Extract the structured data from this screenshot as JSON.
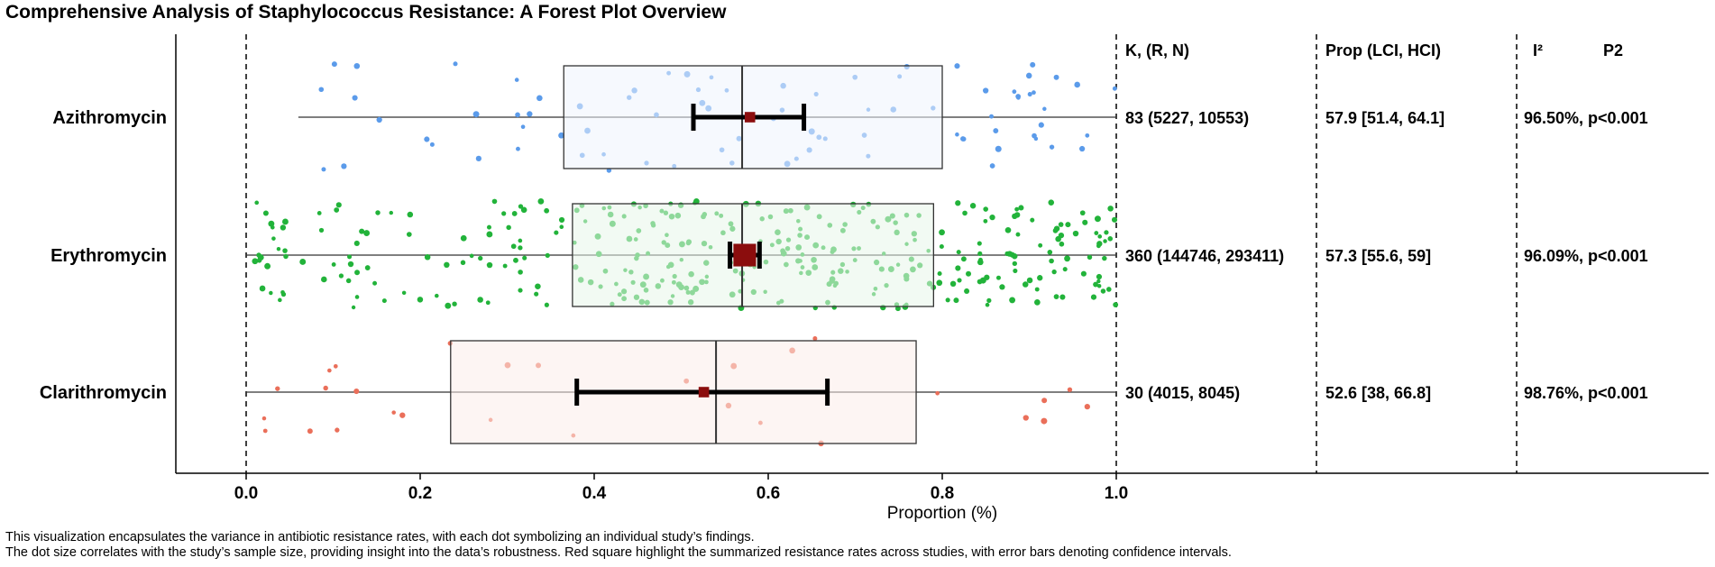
{
  "chart_data": {
    "type": "box",
    "title": "Comprehensive Analysis of Staphylococcus Resistance: A Forest Plot Overview",
    "xlabel": "Proportion (%)",
    "xlim": [
      -0.08,
      1.71
    ],
    "xticks": [
      0.0,
      0.2,
      0.4,
      0.6,
      0.8,
      1.0
    ],
    "xtick_labels": [
      "0.0",
      "0.2",
      "0.4",
      "0.6",
      "0.8",
      "1.0"
    ],
    "reference_lines": [
      0.0,
      1.0
    ],
    "table_headers": {
      "k": "K, (R, N)",
      "prop": "Prop (LCI, HCI)",
      "i2": "I²",
      "p2": "P2"
    },
    "series": [
      {
        "name": "Azithromycin",
        "color": "#5b9bea",
        "box_fill": "#eef4fd",
        "n_points": 83,
        "whisker_low": 0.06,
        "q1": 0.365,
        "median": 0.57,
        "q3": 0.8,
        "whisker_high": 1.0,
        "pooled": 0.579,
        "lci": 0.514,
        "hci": 0.641,
        "square": 0.012,
        "cap_half": 0.1,
        "k_text": "83 (5227, 10553)",
        "prop_text": "57.9 [51.4, 64.1]",
        "i2_text": "96.50%, p<0.001"
      },
      {
        "name": "Erythromycin",
        "color": "#22b33a",
        "box_fill": "#e8f6ea",
        "n_points": 360,
        "whisker_low": 0.0,
        "q1": 0.375,
        "median": 0.57,
        "q3": 0.79,
        "whisker_high": 1.0,
        "pooled": 0.573,
        "lci": 0.556,
        "hci": 0.59,
        "square": 0.026,
        "cap_half": 0.1,
        "k_text": "360 (144746, 293411)",
        "prop_text": "57.3 [55.6, 59]",
        "i2_text": "96.09%, p<0.001"
      },
      {
        "name": "Clarithromycin",
        "color": "#ea6f5a",
        "box_fill": "#fbecea",
        "n_points": 30,
        "whisker_low": 0.0,
        "q1": 0.235,
        "median": 0.54,
        "q3": 0.77,
        "whisker_high": 1.0,
        "pooled": 0.526,
        "lci": 0.38,
        "hci": 0.668,
        "square": 0.012,
        "cap_half": 0.1,
        "k_text": "30 (4015, 8045)",
        "prop_text": "52.6 [38, 66.8]",
        "i2_text": "98.76%, p<0.001"
      }
    ],
    "grid": false,
    "legend": "none"
  },
  "caption": {
    "line1": "This visualization encapsulates the variance in antibiotic resistance rates, with each dot symbolizing an individual study’s findings.",
    "line2": "The dot size correlates with the study’s sample size, providing insight into the data’s robustness. Red square highlight the summarized resistance rates across studies, with error bars denoting confidence intervals."
  },
  "colors": {
    "pooled_square": "#8b0d0d",
    "error_bar": "#000000"
  }
}
